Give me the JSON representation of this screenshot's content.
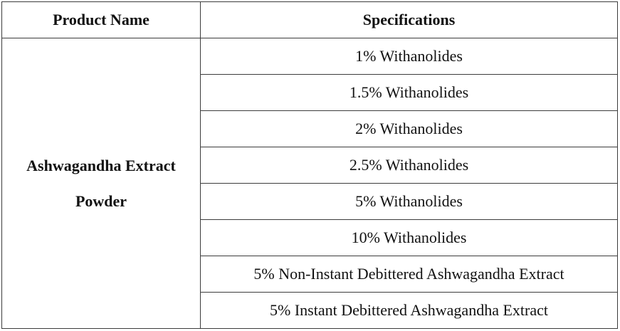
{
  "table": {
    "header": [
      "Product Name",
      "Specifications"
    ],
    "product": "Ashwagandha Extract Powder",
    "specifications": [
      "1% Withanolides",
      "1.5% Withanolides",
      "2% Withanolides",
      "2.5% Withanolides",
      "5% Withanolides",
      "10% Withanolides",
      "5% Non-Instant Debittered Ashwagandha Extract",
      "5% Instant Debittered Ashwagandha Extract"
    ]
  }
}
